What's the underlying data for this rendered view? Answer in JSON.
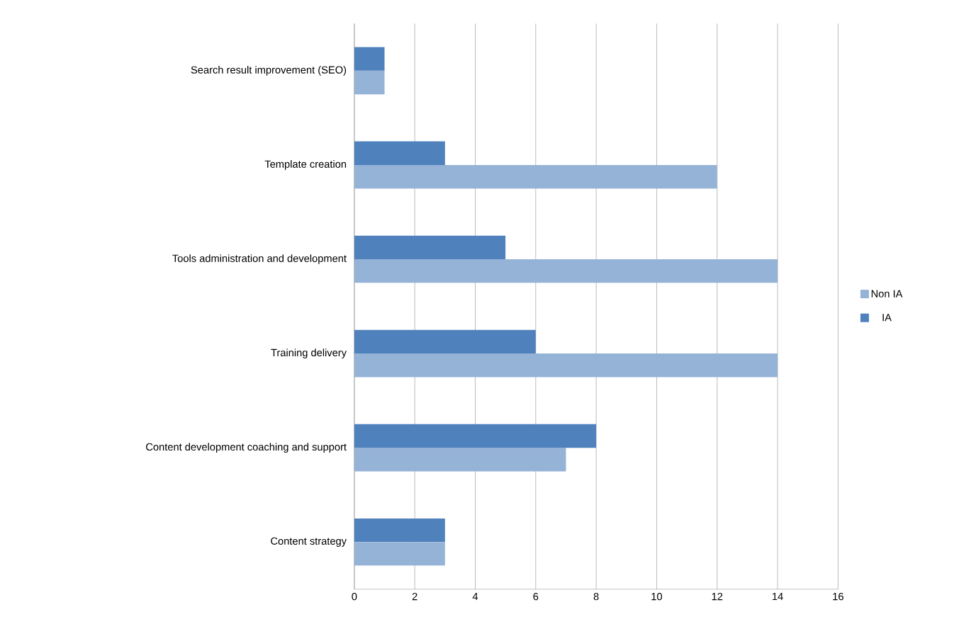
{
  "chart_data": {
    "type": "bar",
    "orientation": "horizontal",
    "categories": [
      "Search result improvement (SEO)",
      "Template creation",
      "Tools administration and development",
      "Training delivery",
      "Content development coaching and support",
      "Content strategy"
    ],
    "series": [
      {
        "name": "Non IA",
        "color": "#95b3d7",
        "values": [
          1,
          12,
          14,
          14,
          7,
          3
        ]
      },
      {
        "name": "IA",
        "color": "#4f81bd",
        "values": [
          1,
          3,
          5,
          6,
          8,
          3
        ]
      }
    ],
    "xlim": [
      0,
      16
    ],
    "xticks": [
      0,
      2,
      4,
      6,
      8,
      10,
      12,
      14,
      16
    ],
    "grid": "x",
    "legend": "right"
  }
}
